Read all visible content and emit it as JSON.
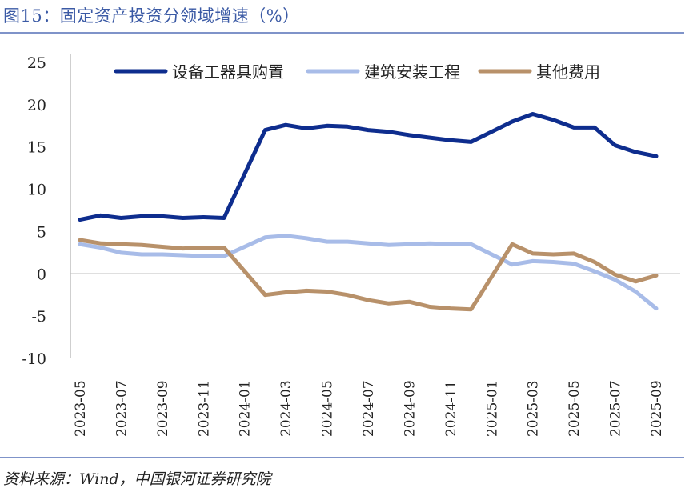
{
  "title": "图15：固定资产投资分领域增速（%）",
  "source": "资料来源：Wind，中国银河证券研究院",
  "chart_data": {
    "type": "line",
    "title": "固定资产投资分领域增速（%）",
    "xlabel": "",
    "ylabel": "",
    "ylim": [
      -10,
      25
    ],
    "yticks": [
      25,
      20,
      15,
      10,
      5,
      0,
      -5,
      -10
    ],
    "legend_position": "top",
    "grid": false,
    "x": [
      "2023-05",
      "2023-06",
      "2023-07",
      "2023-08",
      "2023-09",
      "2023-10",
      "2023-11",
      "2023-12",
      "2024-01",
      "2024-02",
      "2024-03",
      "2024-04",
      "2024-05",
      "2024-06",
      "2024-07",
      "2024-08",
      "2024-09",
      "2024-10",
      "2024-11",
      "2024-12",
      "2025-01",
      "2025-02",
      "2025-03",
      "2025-04",
      "2025-05",
      "2025-06",
      "2025-07",
      "2025-08",
      "2025-09"
    ],
    "xtick_labels": [
      "2023-05",
      "2023-07",
      "2023-09",
      "2023-11",
      "2024-01",
      "2024-03",
      "2024-05",
      "2024-07",
      "2024-09",
      "2024-11",
      "2025-01",
      "2025-03",
      "2025-05",
      "2025-07",
      "2025-09"
    ],
    "series": [
      {
        "name": "设备工器具购置",
        "color": "#0e2d8e",
        "values": [
          6.4,
          6.9,
          6.6,
          6.8,
          6.8,
          6.6,
          6.7,
          6.6,
          null,
          17.0,
          17.6,
          17.2,
          17.5,
          17.4,
          17.0,
          16.8,
          16.4,
          16.1,
          15.8,
          15.6,
          null,
          18.0,
          18.9,
          18.2,
          17.3,
          17.3,
          15.2,
          14.4,
          13.9
        ]
      },
      {
        "name": "建筑安装工程",
        "color": "#a8bce8",
        "values": [
          3.5,
          3.1,
          2.5,
          2.3,
          2.3,
          2.2,
          2.1,
          2.1,
          null,
          4.3,
          4.5,
          4.2,
          3.8,
          3.8,
          3.6,
          3.4,
          3.5,
          3.6,
          3.5,
          3.5,
          null,
          1.1,
          1.5,
          1.4,
          1.2,
          0.3,
          -0.7,
          -2.1,
          -4.1
        ]
      },
      {
        "name": "其他费用",
        "color": "#b8916a",
        "values": [
          4.0,
          3.6,
          3.5,
          3.4,
          3.2,
          3.0,
          3.1,
          3.1,
          null,
          -2.5,
          -2.2,
          -2.0,
          -2.1,
          -2.5,
          -3.1,
          -3.5,
          -3.3,
          -3.9,
          -4.1,
          -4.2,
          null,
          3.5,
          2.4,
          2.3,
          2.4,
          1.4,
          -0.1,
          -0.9,
          -0.2
        ]
      }
    ]
  }
}
